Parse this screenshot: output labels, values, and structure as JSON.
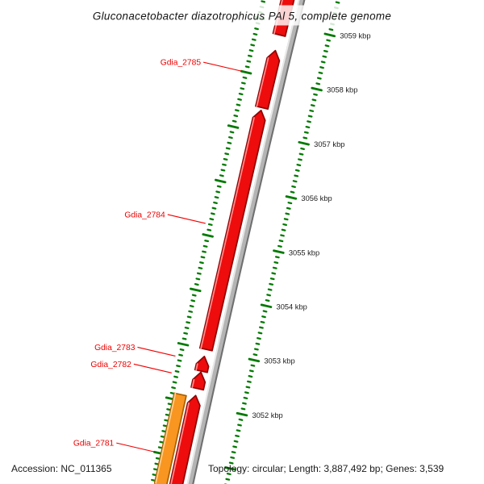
{
  "chart_data": {
    "type": "circular-genome-map-segment",
    "title": "Gluconacetobacter diazotrophicus PAl 5, complete genome",
    "accession_line": "Accession: NC_011365",
    "topology_line": "Topology: circular; Length: 3,887,492 bp; Genes: 3,539",
    "unit": "kbp",
    "visible_span_kbp": [
      3050.4,
      3060.2
    ],
    "ruler": {
      "label_suffix": " kbp",
      "major_interval_kbp": 1.0,
      "minor_interval_kbp": 0.1,
      "labeled_ticks_kbp": [
        3059,
        3058,
        3057,
        3056,
        3055,
        3054,
        3053,
        3052
      ],
      "rings": [
        "outer-dotted-ring",
        "backbone",
        "inner-labeled-ring"
      ]
    },
    "genes": [
      {
        "name": "",
        "label": null,
        "start_kbp": 3058.79,
        "end_kbp": 3059.85,
        "strand": "+",
        "color_key": "red",
        "clipped": "top"
      },
      {
        "name": "Gdia_2785",
        "label": "Gdia_2785",
        "start_kbp": 3057.45,
        "end_kbp": 3058.5,
        "strand": "+",
        "color_key": "red",
        "label_kbp": 3058.0
      },
      {
        "name": "Gdia_2784",
        "label": "Gdia_2784",
        "start_kbp": 3053.0,
        "end_kbp": 3057.4,
        "strand": "+",
        "color_key": "red",
        "label_kbp": 3055.2
      },
      {
        "name": "Gdia_2783",
        "label": "Gdia_2783",
        "start_kbp": 3052.6,
        "end_kbp": 3052.87,
        "strand": "+",
        "color_key": "red",
        "label_kbp": 3052.76
      },
      {
        "name": "Gdia_2782",
        "label": "Gdia_2782",
        "start_kbp": 3052.28,
        "end_kbp": 3052.58,
        "strand": "+",
        "color_key": "red",
        "label_kbp": 3052.45
      },
      {
        "name": "Gdia_2781",
        "label": "Gdia_2781",
        "start_kbp": 3050.3,
        "end_kbp": 3052.11,
        "strand": "-",
        "color_key": "orange",
        "label_kbp": 3051.0
      },
      {
        "name": "",
        "label": null,
        "start_kbp": 3050.4,
        "end_kbp": 3052.15,
        "strand": "+",
        "color_key": "red",
        "clipped": "bottom"
      }
    ],
    "colors": {
      "red": "#ee0c0c",
      "red_dark": "#8f0404",
      "red_light": "#ff8a8a",
      "orange": "#f89621",
      "orange_dark": "#a95f00",
      "orange_light": "#ffd08e",
      "backbone": "#b4b4b4",
      "backbone_dark": "#6f6f6f",
      "backbone_light": "#ebebeb",
      "tick_green": "#007a00",
      "gene_label_red": "#ee0000",
      "text": "#1a1a1a"
    }
  }
}
